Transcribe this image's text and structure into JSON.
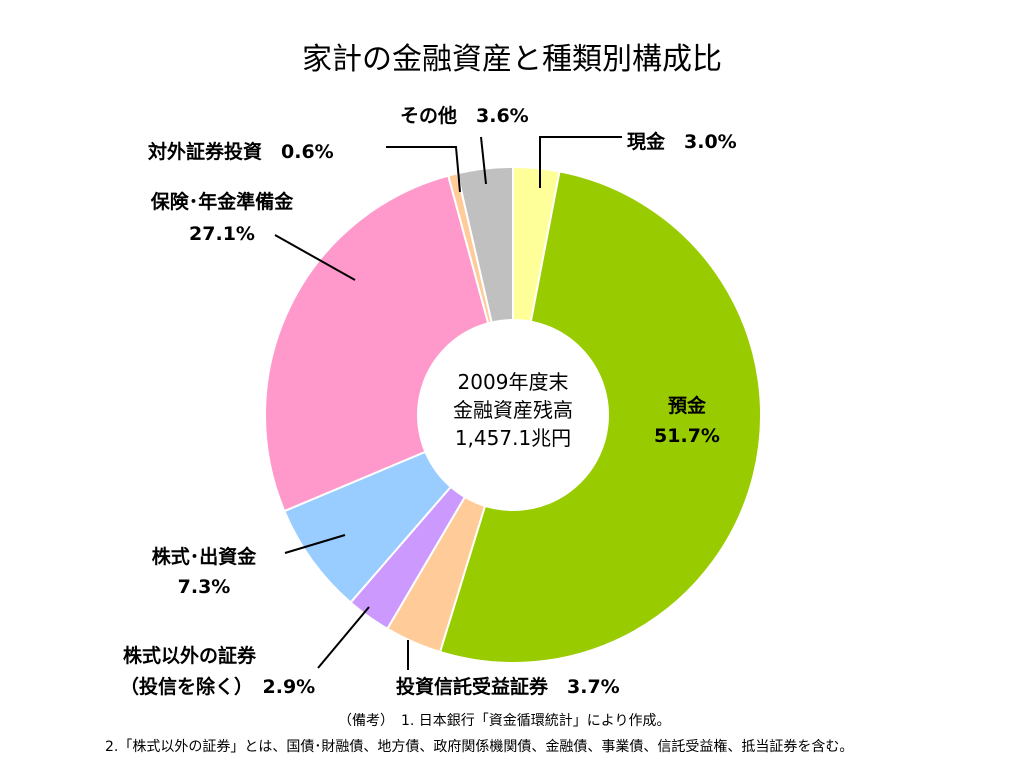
{
  "chart_data": {
    "type": "pie",
    "title": "家計の金融資産と種類別構成比",
    "center_text": [
      "2009年度末",
      "金融資産残高",
      "1,457.1兆円"
    ],
    "slices": [
      {
        "label": "現金",
        "label_text": "現金　3.0%",
        "value": 3.0,
        "color": "#FFFF99"
      },
      {
        "label": "預金",
        "label_text": "預金",
        "value_text": "51.7%",
        "value": 51.7,
        "color": "#99CC00"
      },
      {
        "label": "投資信託受益証券",
        "label_text": "投資信託受益証券　3.7%",
        "value": 3.7,
        "color": "#FFCC99"
      },
      {
        "label": "株式以外の証券（投信を除く）",
        "label_text": "株式以外の証券",
        "label_text2": "（投信を除く）　2.9%",
        "value": 2.9,
        "color": "#CC99FF"
      },
      {
        "label": "株式・出資金",
        "label_text": "株式･出資金",
        "value_text": "7.3%",
        "value": 7.3,
        "color": "#99CCFF"
      },
      {
        "label": "保険・年金準備金",
        "label_text": "保険･年金準備金",
        "value_text": "27.1%",
        "value": 27.1,
        "color": "#FF99CC"
      },
      {
        "label": "対外証券投資",
        "label_text": "対外証券投資　0.6%",
        "value": 0.6,
        "color": "#FFCC99"
      },
      {
        "label": "その他",
        "label_text": "その他　3.6%",
        "value": 3.6,
        "color": "#C0C0C0"
      }
    ]
  },
  "notes": {
    "line1": "（備考）　1. 日本銀行「資金循環統計」により作成。",
    "line2": "2.「株式以外の証券」とは、国債･財融債、地方債、政府関係機関債、金融債、事業債、信託受益権、抵当証券を含む。"
  }
}
